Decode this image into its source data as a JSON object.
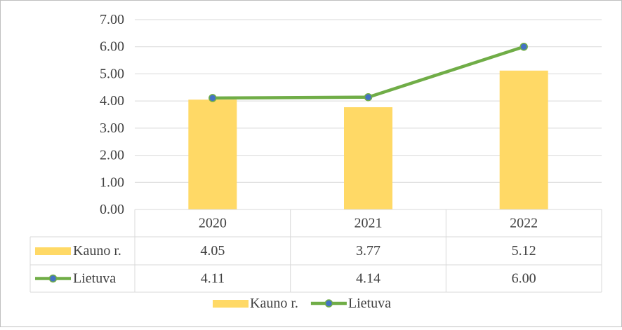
{
  "chart_data": {
    "type": "bar",
    "categories": [
      "2020",
      "2021",
      "2022"
    ],
    "series": [
      {
        "name": "Kauno r.",
        "type": "bar",
        "values": [
          4.05,
          3.77,
          5.12
        ],
        "display": [
          "4.05",
          "3.77",
          "5.12"
        ],
        "color": "#ffd966"
      },
      {
        "name": "Lietuva",
        "type": "line",
        "values": [
          4.11,
          4.14,
          6.0
        ],
        "display": [
          "4.11",
          "4.14",
          "6.00"
        ],
        "color": "#70ad47",
        "marker_color": "#4472c4"
      }
    ],
    "ylim": [
      0,
      7
    ],
    "yticks": [
      "0.00",
      "1.00",
      "2.00",
      "3.00",
      "4.00",
      "5.00",
      "6.00",
      "7.00"
    ],
    "grid": true,
    "data_table": true,
    "legend_position": "bottom"
  }
}
